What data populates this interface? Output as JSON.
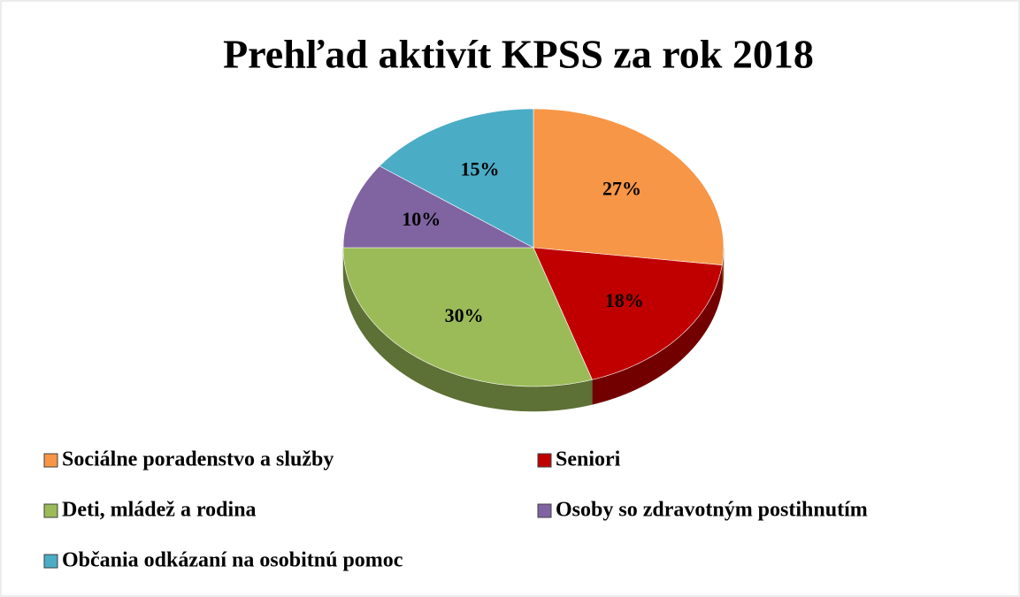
{
  "chart_data": {
    "type": "pie",
    "title": "Prehľad aktivít KPSS za rok 2018",
    "categories": [
      "Sociálne poradenstvo a služby",
      "Seniori",
      "Deti, mládež a rodina",
      "Osoby so zdravotným postihnutím",
      "Občania odkázaní na osobitnú pomoc"
    ],
    "values": [
      27,
      18,
      30,
      10,
      15
    ],
    "value_labels": [
      "27%",
      "18%",
      "30%",
      "10%",
      "15%"
    ],
    "colors": [
      "#f79646",
      "#c00000",
      "#9bbb59",
      "#8064a2",
      "#4bacc6"
    ],
    "legend": "bottom"
  }
}
